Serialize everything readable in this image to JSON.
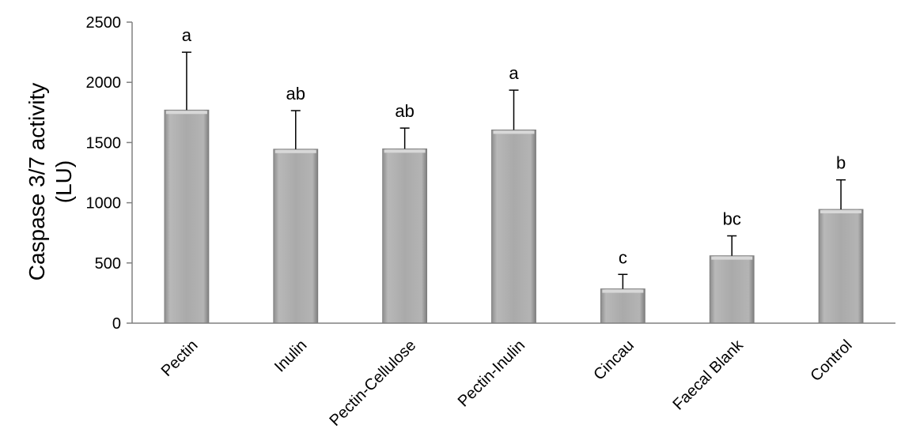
{
  "chart_data": {
    "type": "bar",
    "title": "",
    "ylabel_lines": [
      "Caspase 3/7 activity",
      "(LU)"
    ],
    "xlabel": "",
    "ylim": [
      0,
      2500
    ],
    "yticks": [
      0,
      500,
      1000,
      1500,
      2000,
      2500
    ],
    "grid": false,
    "legend": "none",
    "bar_color": "#a9a9a9",
    "categories": [
      "Pectin",
      "Inulin",
      "Pectin-Cellulose",
      "Pectin-Inulin",
      "Cincau",
      "Faecal Blank",
      "Control"
    ],
    "values": [
      1770,
      1445,
      1448,
      1605,
      285,
      560,
      945
    ],
    "error_upper": [
      2250,
      1765,
      1620,
      1935,
      405,
      725,
      1190
    ],
    "letters": [
      "a",
      "ab",
      "ab",
      "a",
      "c",
      "bc",
      "b"
    ]
  }
}
